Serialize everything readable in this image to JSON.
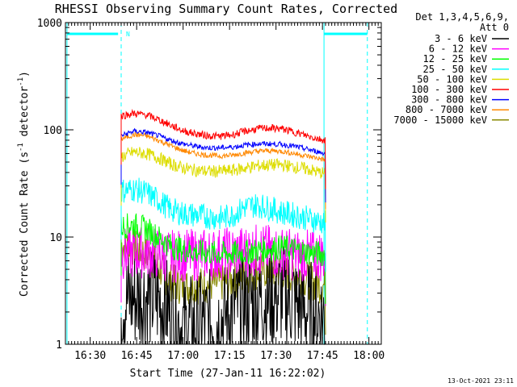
{
  "chart_data": {
    "type": "line",
    "title": "RHESSI Observing Summary Count Rates, Corrected",
    "ylabel_main": "Corrected Count Rate (s",
    "ylabel_sup1": "-1",
    "ylabel_mid": " detector",
    "ylabel_sup2": "-1",
    "ylabel_end": ")",
    "xlabel": "Start Time (27-Jan-11 16:22:02)",
    "footer": "13-Oct-2021 23:11",
    "y_scale": "log",
    "ylim": [
      1,
      1000
    ],
    "xlim_minutes_from_1622": [
      0,
      102
    ],
    "y_ticks": [
      {
        "value": 1,
        "label": "1"
      },
      {
        "value": 10,
        "label": "10"
      },
      {
        "value": 100,
        "label": "100"
      },
      {
        "value": 1000,
        "label": "1000"
      }
    ],
    "x_ticks": [
      {
        "value": 8,
        "label": "16:30"
      },
      {
        "value": 23,
        "label": "16:45"
      },
      {
        "value": 38,
        "label": "17:00"
      },
      {
        "value": 53,
        "label": "17:15"
      },
      {
        "value": 68,
        "label": "17:30"
      },
      {
        "value": 83,
        "label": "17:45"
      },
      {
        "value": 98,
        "label": "18:00"
      }
    ],
    "legend_header": [
      "Det 1,3,4,5,6,9,",
      "Att 0"
    ],
    "legend_placement": "right",
    "flag_label": "N",
    "series": [
      {
        "name": "3 - 6 keV",
        "color": "#000000",
        "x": [
          18,
          22,
          26,
          30,
          34,
          38,
          42,
          46,
          50,
          54,
          58,
          62,
          66,
          70,
          74,
          78,
          82,
          84
        ],
        "y": [
          2.5,
          2.7,
          2.8,
          2.6,
          2.0,
          1.4,
          1.5,
          1.6,
          1.7,
          2.1,
          2.5,
          2.6,
          2.7,
          2.9,
          2.5,
          2.0,
          1.9,
          1.8
        ]
      },
      {
        "name": "6 - 12 keV",
        "color": "#ff00ff",
        "x": [
          18,
          22,
          26,
          30,
          34,
          38,
          42,
          46,
          50,
          54,
          58,
          62,
          66,
          70,
          74,
          78,
          82,
          84
        ],
        "y": [
          7.0,
          7.1,
          7.3,
          7.0,
          6.6,
          6.7,
          6.8,
          6.9,
          7.0,
          7.1,
          7.4,
          7.6,
          7.4,
          7.1,
          6.8,
          6.7,
          6.8,
          6.5
        ]
      },
      {
        "name": "12 - 25 keV",
        "color": "#00ff00",
        "x": [
          18,
          22,
          26,
          30,
          34,
          38,
          42,
          46,
          50,
          54,
          58,
          62,
          66,
          70,
          74,
          78,
          82,
          84
        ],
        "y": [
          12.5,
          13.0,
          12.0,
          10.0,
          8.2,
          7.6,
          7.3,
          7.1,
          7.0,
          7.0,
          7.2,
          7.5,
          7.8,
          8.0,
          7.6,
          7.2,
          7.0,
          6.8
        ]
      },
      {
        "name": "25 - 50 keV",
        "color": "#00ffff",
        "x": [
          18,
          22,
          26,
          30,
          34,
          38,
          42,
          46,
          50,
          54,
          58,
          62,
          66,
          70,
          74,
          78,
          82,
          84
        ],
        "y": [
          27,
          28,
          26,
          22,
          18,
          16.5,
          16,
          15.5,
          15,
          16,
          19,
          20,
          18.5,
          17,
          16,
          15,
          14,
          13.5
        ]
      },
      {
        "name": "50 - 100 keV",
        "color": "#dddd00",
        "x": [
          18,
          22,
          26,
          30,
          34,
          38,
          42,
          46,
          50,
          54,
          58,
          62,
          66,
          70,
          74,
          78,
          82,
          84
        ],
        "y": [
          56,
          62,
          60,
          55,
          48,
          44,
          42,
          41,
          41,
          42,
          44,
          46,
          47,
          47,
          45,
          43,
          40,
          39
        ]
      },
      {
        "name": "100 - 300 keV",
        "color": "#ff0000",
        "x": [
          18,
          22,
          26,
          30,
          34,
          38,
          42,
          46,
          50,
          54,
          58,
          62,
          66,
          70,
          74,
          78,
          82,
          84
        ],
        "y": [
          135,
          142,
          138,
          125,
          110,
          98,
          92,
          88,
          87,
          90,
          97,
          102,
          104,
          102,
          95,
          88,
          82,
          80
        ]
      },
      {
        "name": "300 - 800 keV",
        "color": "#0000ff",
        "x": [
          18,
          22,
          26,
          30,
          34,
          38,
          42,
          46,
          50,
          54,
          58,
          62,
          66,
          70,
          74,
          78,
          82,
          84
        ],
        "y": [
          88,
          97,
          95,
          88,
          80,
          74,
          70,
          68,
          68,
          69,
          72,
          74,
          74,
          73,
          70,
          66,
          62,
          60
        ]
      },
      {
        "name": "800 - 7000 keV",
        "color": "#ff8800",
        "x": [
          18,
          22,
          26,
          30,
          34,
          38,
          42,
          46,
          50,
          54,
          58,
          62,
          66,
          70,
          74,
          78,
          82,
          84
        ],
        "y": [
          82,
          90,
          88,
          80,
          71,
          64,
          60,
          58,
          57,
          58,
          61,
          63,
          64,
          63,
          60,
          57,
          54,
          52
        ]
      },
      {
        "name": "7000 - 15000 keV",
        "color": "#888800",
        "x": [
          18,
          22,
          26,
          30,
          34,
          38,
          42,
          46,
          50,
          54,
          58,
          62,
          66,
          70,
          74,
          78,
          82,
          84
        ],
        "y": [
          8.5,
          8.0,
          7.0,
          5.2,
          3.8,
          3.4,
          3.5,
          3.6,
          3.7,
          3.9,
          4.3,
          4.8,
          5.0,
          4.8,
          4.5,
          4.0,
          3.6,
          3.5
        ]
      }
    ]
  }
}
